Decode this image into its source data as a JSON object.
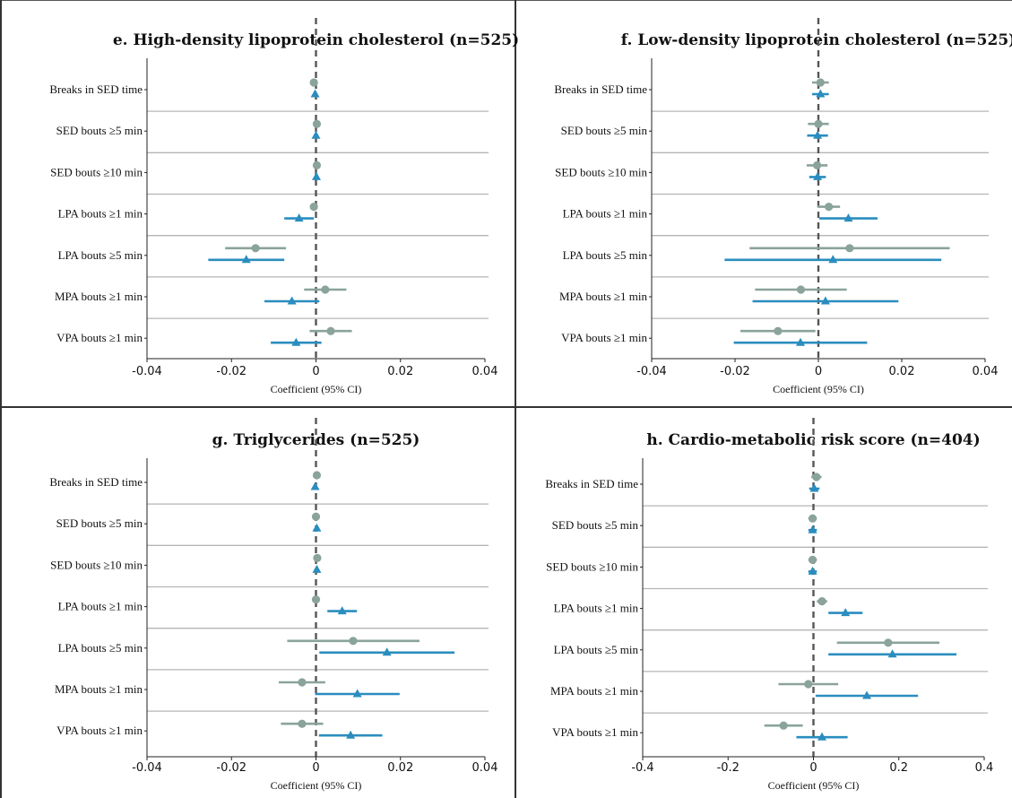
{
  "colors": {
    "gray": "#8aa39b",
    "blue": "#2a8dbf",
    "refline": "#555555",
    "gridline": "#b5b5b5"
  },
  "chart_data": [
    {
      "type": "scatter",
      "title": "e. High-density lipoprotein cholesterol (n=525)",
      "xlabel": "Coefficient (95% CI)",
      "xlim": [
        -0.04,
        0.04
      ],
      "xticks": [
        "-0.04",
        "-0.02",
        "0",
        "0.02",
        "0.04"
      ],
      "xtick_values": [
        -0.04,
        -0.02,
        0,
        0.02,
        0.04
      ],
      "categories": [
        "Breaks in SED time",
        "SED bouts ≥5 min",
        "SED bouts ≥10 min",
        "LPA bouts ≥1 min",
        "LPA bouts ≥5 min",
        "MPA bouts ≥1 min",
        "VPA bouts ≥1 min"
      ],
      "series": [
        {
          "marker": "circle",
          "color": "gray",
          "points": [
            [
              -0.0005,
              -0.001,
              0.0
            ],
            [
              0.0002,
              -0.0003,
              0.0007
            ],
            [
              0.0002,
              -0.0002,
              0.0006
            ],
            [
              -0.0005,
              -0.0012,
              0.0002
            ],
            [
              -0.0143,
              -0.0215,
              -0.0071
            ],
            [
              0.0022,
              -0.0028,
              0.0072
            ],
            [
              0.0035,
              -0.0015,
              0.0085
            ]
          ]
        },
        {
          "marker": "triangle",
          "color": "blue",
          "points": [
            [
              -0.0002,
              -0.0007,
              0.0003
            ],
            [
              0.0,
              -0.0004,
              0.0004
            ],
            [
              0.0001,
              -0.0003,
              0.0005
            ],
            [
              -0.004,
              -0.0075,
              -0.0005
            ],
            [
              -0.0165,
              -0.0255,
              -0.0075
            ],
            [
              -0.0057,
              -0.0122,
              0.0008
            ],
            [
              -0.0047,
              -0.0107,
              0.0013
            ]
          ]
        }
      ]
    },
    {
      "type": "scatter",
      "title": "f. Low-density lipoprotein cholesterol (n=525)",
      "xlabel": "Coefficient (95% CI)",
      "xlim": [
        -0.04,
        0.04
      ],
      "xticks": [
        "-0.04",
        "-0.02",
        "0",
        "0.02",
        "0.04"
      ],
      "xtick_values": [
        -0.04,
        -0.02,
        0,
        0.02,
        0.04
      ],
      "categories": [
        "Breaks in SED time",
        "SED bouts ≥5 min",
        "SED bouts ≥10 min",
        "LPA bouts ≥1 min",
        "LPA bouts ≥5 min",
        "MPA bouts ≥1 min",
        "VPA bouts ≥1 min"
      ],
      "series": [
        {
          "marker": "circle",
          "color": "gray",
          "points": [
            [
              0.0005,
              -0.0015,
              0.0025
            ],
            [
              0.0,
              -0.0025,
              0.0025
            ],
            [
              -0.0003,
              -0.0028,
              0.0022
            ],
            [
              0.0025,
              -0.0002,
              0.0052
            ],
            [
              0.0075,
              -0.0165,
              0.0315
            ],
            [
              -0.0042,
              -0.0152,
              0.0068
            ],
            [
              -0.0097,
              -0.0187,
              -0.0007
            ]
          ]
        },
        {
          "marker": "triangle",
          "color": "blue",
          "points": [
            [
              0.0005,
              -0.0015,
              0.0025
            ],
            [
              -0.0002,
              -0.0027,
              0.0023
            ],
            [
              -0.0002,
              -0.0022,
              0.0018
            ],
            [
              0.0072,
              0.0002,
              0.0142
            ],
            [
              0.0035,
              -0.0225,
              0.0295
            ],
            [
              0.0017,
              -0.0158,
              0.0192
            ],
            [
              -0.0043,
              -0.0203,
              0.0117
            ]
          ]
        }
      ]
    },
    {
      "type": "scatter",
      "title": "g. Triglycerides (n=525)",
      "xlabel": "Coefficient (95% CI)",
      "xlim": [
        -0.04,
        0.04
      ],
      "xticks": [
        "-0.04",
        "-0.02",
        "0",
        "0.02",
        "0.04"
      ],
      "xtick_values": [
        -0.04,
        -0.02,
        0,
        0.02,
        0.04
      ],
      "categories": [
        "Breaks in SED time",
        "SED bouts ≥5 min",
        "SED bouts ≥10 min",
        "LPA bouts ≥1 min",
        "LPA bouts ≥5 min",
        "MPA bouts ≥1 min",
        "VPA bouts ≥1 min"
      ],
      "series": [
        {
          "marker": "circle",
          "color": "gray",
          "points": [
            [
              0.0002,
              -0.0003,
              0.0007
            ],
            [
              0.0,
              -0.0005,
              0.0005
            ],
            [
              0.0003,
              -0.0002,
              0.0008
            ],
            [
              0.0,
              -0.0004,
              0.0004
            ],
            [
              0.0088,
              -0.0068,
              0.0245
            ],
            [
              -0.0033,
              -0.0088,
              0.0022
            ],
            [
              -0.0033,
              -0.0083,
              0.0017
            ]
          ]
        },
        {
          "marker": "triangle",
          "color": "blue",
          "points": [
            [
              -0.0002,
              -0.0007,
              0.0003
            ],
            [
              0.0002,
              -0.0003,
              0.0007
            ],
            [
              0.0002,
              -0.0003,
              0.0007
            ],
            [
              0.0062,
              0.0027,
              0.0097
            ],
            [
              0.0168,
              0.0008,
              0.0328
            ],
            [
              0.0098,
              -0.0002,
              0.0198
            ],
            [
              0.0082,
              0.0007,
              0.0157
            ]
          ]
        }
      ]
    },
    {
      "type": "scatter",
      "title": "h. Cardio-metabolic risk score (n=404)",
      "xlabel": "Coefficient (95% CI)",
      "xlim": [
        -0.4,
        0.4
      ],
      "xticks": [
        "-0.4",
        "-0.2",
        "0",
        "0.2",
        "0.4"
      ],
      "xtick_values": [
        -0.4,
        -0.2,
        0,
        0.2,
        0.4
      ],
      "categories": [
        "Breaks in SED time",
        "SED bouts ≥5 min",
        "SED bouts ≥10 min",
        "LPA bouts ≥1 min",
        "LPA bouts ≥5 min",
        "MPA bouts ≥1 min",
        "VPA bouts ≥1 min"
      ],
      "series": [
        {
          "marker": "circle",
          "color": "gray",
          "points": [
            [
              0.007,
              -0.005,
              0.019
            ],
            [
              -0.002,
              -0.012,
              0.008
            ],
            [
              -0.002,
              -0.012,
              0.008
            ],
            [
              0.02,
              0.008,
              0.032
            ],
            [
              0.175,
              0.055,
              0.295
            ],
            [
              -0.012,
              -0.082,
              0.058
            ],
            [
              -0.07,
              -0.115,
              -0.025
            ]
          ]
        },
        {
          "marker": "triangle",
          "color": "blue",
          "points": [
            [
              0.002,
              -0.01,
              0.014
            ],
            [
              -0.002,
              -0.012,
              0.008
            ],
            [
              -0.002,
              -0.012,
              0.008
            ],
            [
              0.075,
              0.035,
              0.115
            ],
            [
              0.185,
              0.035,
              0.335
            ],
            [
              0.125,
              0.005,
              0.245
            ],
            [
              0.02,
              -0.04,
              0.08
            ]
          ]
        }
      ]
    }
  ]
}
